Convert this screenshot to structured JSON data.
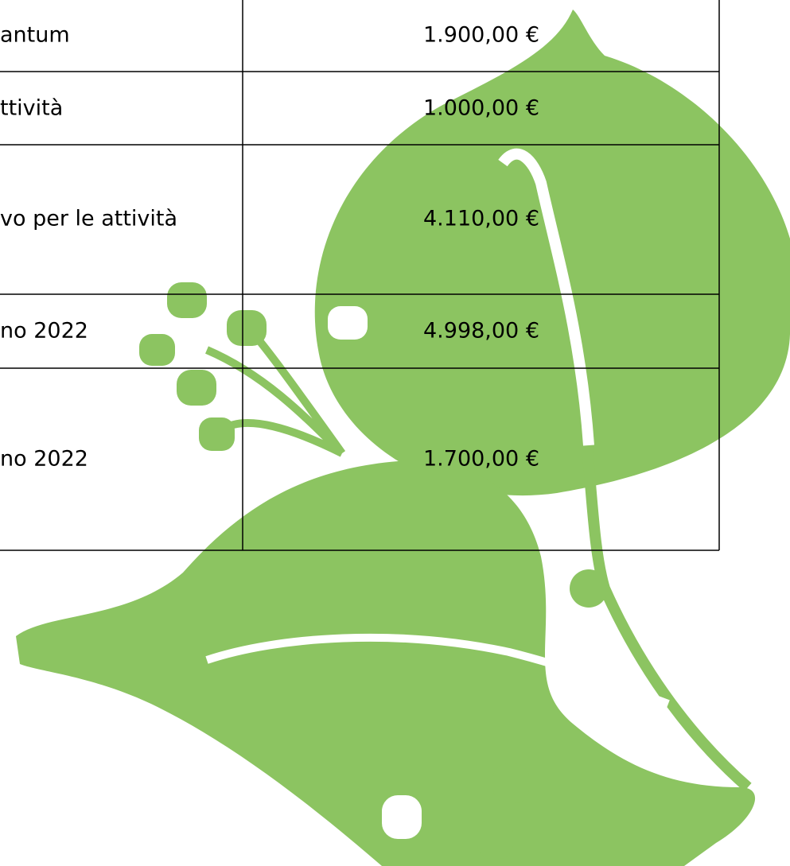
{
  "table": {
    "rows": [
      [
        "antum",
        "1.900,00 €"
      ],
      [
        "ttività",
        "1.000,00 €"
      ],
      [
        "vo per le attività",
        "4.110,00 €"
      ],
      [
        "no 2022",
        "4.998,00 €"
      ],
      [
        "no 2022",
        "1.700,00 €"
      ]
    ]
  }
}
